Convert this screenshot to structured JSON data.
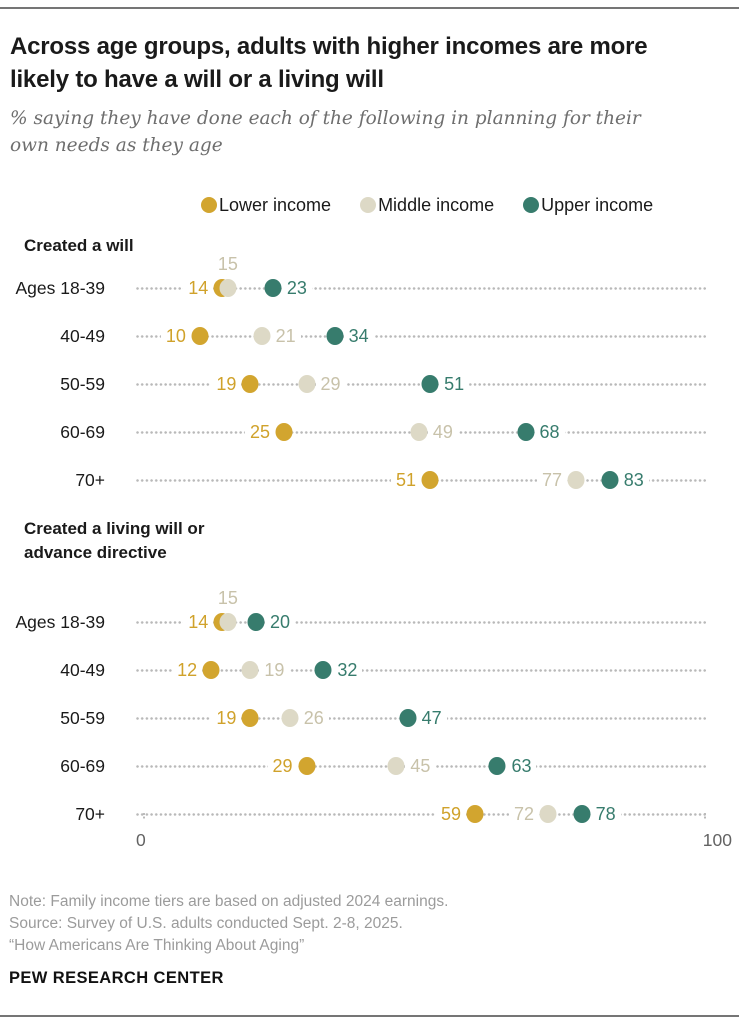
{
  "header": {
    "title": "Across age groups, adults with higher incomes are more likely to have a will or a living will",
    "subtitle": "% saying they have done each of the following in planning for their own needs as they age"
  },
  "legend": {
    "items": [
      {
        "label": "Lower income",
        "color": "#D2A52F"
      },
      {
        "label": "Middle income",
        "color": "#DDD9C6"
      },
      {
        "label": "Upper income",
        "color": "#377C6D"
      }
    ]
  },
  "chart_data": {
    "type": "scatter",
    "variant": "dot-plot",
    "xlim": [
      0,
      100
    ],
    "axis": {
      "min_label": "0",
      "max_label": "100"
    },
    "grid": "dotted-leader-lines",
    "legend_position": "top",
    "series": [
      {
        "name": "Lower income",
        "dot_color": "#D2A52F",
        "label_color": "#D0A22B"
      },
      {
        "name": "Middle income",
        "dot_color": "#DDD9C6",
        "label_color": "#C8C2AA"
      },
      {
        "name": "Upper income",
        "dot_color": "#377C6D",
        "label_color": "#377C6D"
      }
    ],
    "sections": [
      {
        "title": "Created a will",
        "rows": [
          {
            "label": "Ages 18-39",
            "values": [
              14,
              15,
              23
            ],
            "label_pos": [
              "left",
              "above",
              "right"
            ]
          },
          {
            "label": "40-49",
            "values": [
              10,
              21,
              34
            ],
            "label_pos": [
              "left",
              "right",
              "right"
            ]
          },
          {
            "label": "50-59",
            "values": [
              19,
              29,
              51
            ],
            "label_pos": [
              "left",
              "right",
              "right"
            ]
          },
          {
            "label": "60-69",
            "values": [
              25,
              49,
              68
            ],
            "label_pos": [
              "left",
              "right",
              "right"
            ]
          },
          {
            "label": "70+",
            "values": [
              51,
              77,
              83
            ],
            "label_pos": [
              "left",
              "left",
              "right"
            ]
          }
        ]
      },
      {
        "title": "Created a living will or advance directive",
        "rows": [
          {
            "label": "Ages 18-39",
            "values": [
              14,
              15,
              20
            ],
            "label_pos": [
              "left",
              "above",
              "right"
            ]
          },
          {
            "label": "40-49",
            "values": [
              12,
              19,
              32
            ],
            "label_pos": [
              "left",
              "right",
              "right"
            ]
          },
          {
            "label": "50-59",
            "values": [
              19,
              26,
              47
            ],
            "label_pos": [
              "left",
              "right",
              "right"
            ]
          },
          {
            "label": "60-69",
            "values": [
              29,
              45,
              63
            ],
            "label_pos": [
              "left",
              "right",
              "right"
            ]
          },
          {
            "label": "70+",
            "values": [
              59,
              72,
              78
            ],
            "label_pos": [
              "left",
              "left",
              "right"
            ]
          }
        ]
      }
    ]
  },
  "footer": {
    "note": "Note: Family income tiers are based on adjusted 2024 earnings.",
    "source": "Source: Survey of U.S. adults conducted Sept. 2-8, 2025.",
    "quote": "“How Americans Are Thinking About Aging”",
    "brand": "PEW RESEARCH CENTER"
  }
}
